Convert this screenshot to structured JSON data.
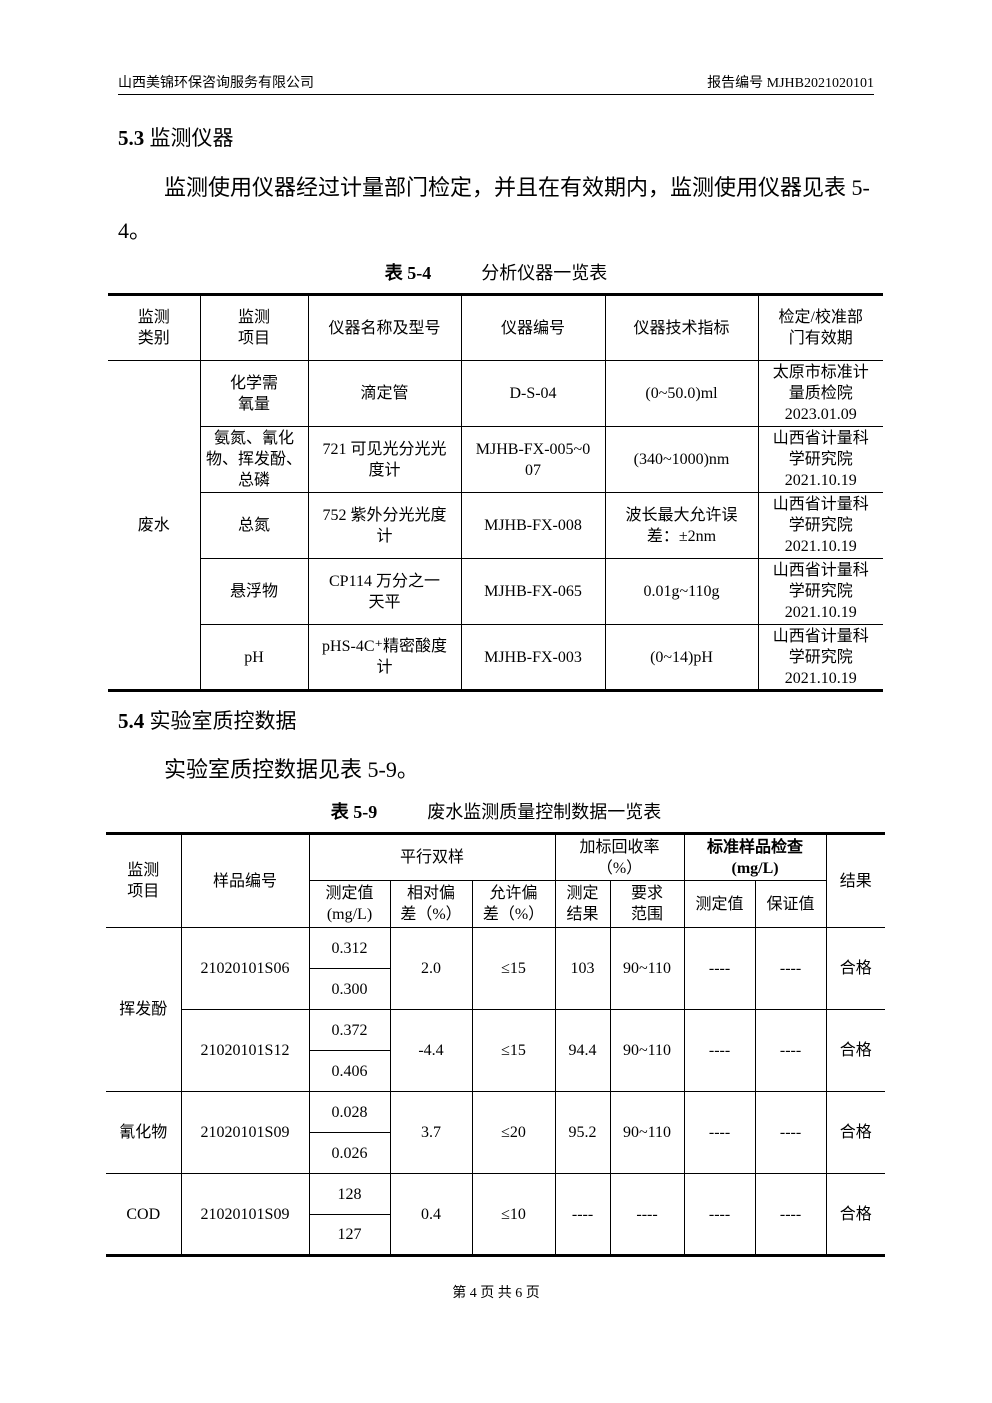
{
  "header": {
    "company": "山西美锦环保咨询服务有限公司",
    "report_no": "报告编号 MJHB2021020101"
  },
  "section_53": {
    "num": "5.3",
    "title": " 监测仪器",
    "para": "监测使用仪器经过计量部门检定，并且在有效期内，监测使用仪器见表 5-4。"
  },
  "table_54": {
    "caption_label": "表 5-4",
    "caption_text": "分析仪器一览表",
    "headers": [
      "监测\n类别",
      "监测\n项目",
      "仪器名称及型号",
      "仪器编号",
      "仪器技术指标",
      "检定/校准部\n门有效期"
    ],
    "category": "废水",
    "rows": [
      [
        "化学需\n氧量",
        "滴定管",
        "D-S-04",
        "(0~50.0)ml",
        "太原市标准计\n量质检院\n2023.01.09"
      ],
      [
        "氨氮、氰化\n物、挥发酚、\n总磷",
        "721 可见光分光光\n度计",
        "MJHB-FX-005~0\n07",
        "(340~1000)nm",
        "山西省计量科\n学研究院\n2021.10.19"
      ],
      [
        "总氮",
        "752 紫外分光光度\n计",
        "MJHB-FX-008",
        "波长最大允许误\n差：±2nm",
        "山西省计量科\n学研究院\n2021.10.19"
      ],
      [
        "悬浮物",
        "CP114 万分之一\n天平",
        "MJHB-FX-065",
        "0.01g~110g",
        "山西省计量科\n学研究院\n2021.10.19"
      ],
      [
        "pH",
        "pHS-4C⁺精密酸度\n计",
        "MJHB-FX-003",
        "(0~14)pH",
        "山西省计量科\n学研究院\n2021.10.19"
      ]
    ]
  },
  "section_54": {
    "num": "5.4",
    "title": " 实验室质控数据",
    "para": "实验室质控数据见表 5-9。"
  },
  "table_59": {
    "caption_label": "表 5-9",
    "caption_text": "废水监测质量控制数据一览表",
    "h": {
      "item": "监测\n项目",
      "sample": "样品编号",
      "parallel": "平行双样",
      "recovery": "加标回收率\n（%）",
      "standard": "标准样品检查\n(mg/L)",
      "result": "结果",
      "measured": "测定值\n(mg/L)",
      "rel_dev": "相对偏\n差（%）",
      "allow_dev": "允许偏\n差（%）",
      "rec_result": "测定\n结果",
      "rec_range": "要求\n范围",
      "std_measured": "测定值",
      "std_guarantee": "保证值"
    },
    "groups": [
      {
        "item": "挥发酚",
        "samples": [
          {
            "id": "21020101S06",
            "v1": "0.312",
            "v2": "0.300",
            "rel": "2.0",
            "allow": "≤15",
            "rec": "103",
            "range": "90~110",
            "sm": "----",
            "sg": "----",
            "result": "合格"
          },
          {
            "id": "21020101S12",
            "v1": "0.372",
            "v2": "0.406",
            "rel": "-4.4",
            "allow": "≤15",
            "rec": "94.4",
            "range": "90~110",
            "sm": "----",
            "sg": "----",
            "result": "合格"
          }
        ]
      },
      {
        "item": "氰化物",
        "samples": [
          {
            "id": "21020101S09",
            "v1": "0.028",
            "v2": "0.026",
            "rel": "3.7",
            "allow": "≤20",
            "rec": "95.2",
            "range": "90~110",
            "sm": "----",
            "sg": "----",
            "result": "合格"
          }
        ]
      },
      {
        "item": "COD",
        "samples": [
          {
            "id": "21020101S09",
            "v1": "128",
            "v2": "127",
            "rel": "0.4",
            "allow": "≤10",
            "rec": "----",
            "range": "----",
            "sm": "----",
            "sg": "----",
            "result": "合格"
          }
        ]
      }
    ]
  },
  "footer": {
    "page": "第 4 页 共 6 页"
  }
}
